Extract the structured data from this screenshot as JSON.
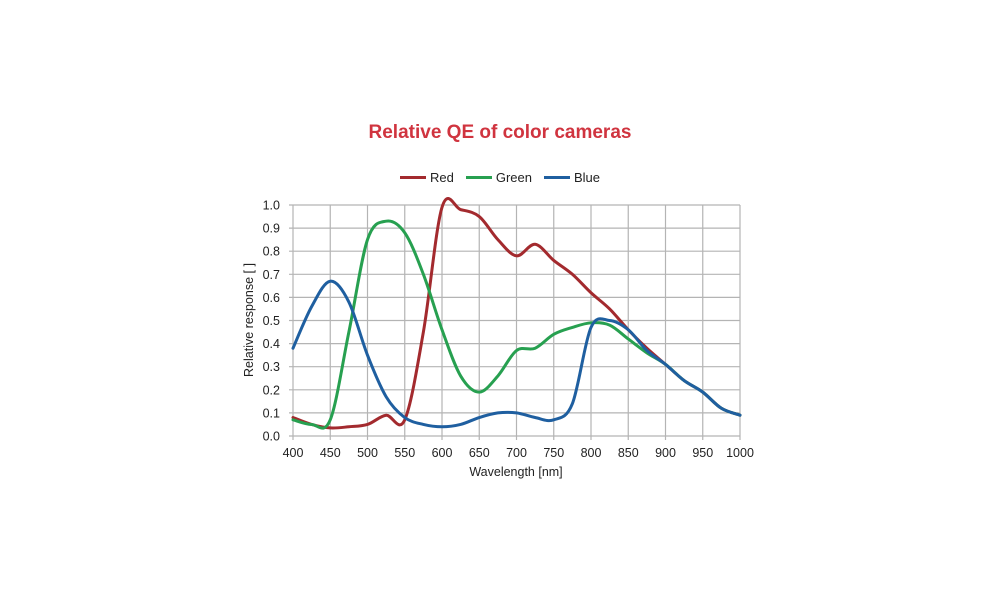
{
  "chart_data": {
    "type": "line",
    "title": "Relative QE of color cameras",
    "xlabel": "Wavelength [nm]",
    "ylabel": "Relative response [ ]",
    "xlim": [
      400,
      1000
    ],
    "ylim": [
      0.0,
      1.0
    ],
    "x_ticks": [
      400,
      450,
      500,
      550,
      600,
      650,
      700,
      750,
      800,
      850,
      900,
      950,
      1000
    ],
    "y_ticks": [
      "0.0",
      "0.1",
      "0.2",
      "0.3",
      "0.4",
      "0.5",
      "0.6",
      "0.7",
      "0.8",
      "0.9",
      "1.0"
    ],
    "grid": true,
    "legend_position": "top",
    "x": [
      400,
      425,
      450,
      475,
      500,
      525,
      550,
      575,
      600,
      625,
      650,
      675,
      700,
      725,
      750,
      775,
      800,
      825,
      850,
      875,
      900,
      925,
      950,
      975,
      1000
    ],
    "series": [
      {
        "name": "Red",
        "color": "#a32a2e",
        "values": [
          0.08,
          0.05,
          0.035,
          0.04,
          0.05,
          0.09,
          0.07,
          0.45,
          0.99,
          0.98,
          0.95,
          0.85,
          0.78,
          0.83,
          0.76,
          0.7,
          0.62,
          0.55,
          0.46,
          0.38,
          0.31,
          0.24,
          0.19,
          0.12,
          0.09
        ]
      },
      {
        "name": "Green",
        "color": "#27a050",
        "values": [
          0.07,
          0.05,
          0.07,
          0.45,
          0.85,
          0.93,
          0.88,
          0.7,
          0.46,
          0.26,
          0.19,
          0.26,
          0.37,
          0.38,
          0.44,
          0.47,
          0.49,
          0.48,
          0.42,
          0.36,
          0.31,
          0.24,
          0.19,
          0.12,
          0.09
        ]
      },
      {
        "name": "Blue",
        "color": "#1f5fa0",
        "values": [
          0.38,
          0.56,
          0.67,
          0.58,
          0.35,
          0.17,
          0.08,
          0.05,
          0.04,
          0.05,
          0.08,
          0.1,
          0.1,
          0.08,
          0.07,
          0.14,
          0.47,
          0.5,
          0.46,
          0.37,
          0.31,
          0.24,
          0.19,
          0.12,
          0.09
        ]
      }
    ]
  },
  "legend": [
    {
      "label": "Red",
      "color": "#a32a2e"
    },
    {
      "label": "Green",
      "color": "#27a050"
    },
    {
      "label": "Blue",
      "color": "#1f5fa0"
    }
  ]
}
